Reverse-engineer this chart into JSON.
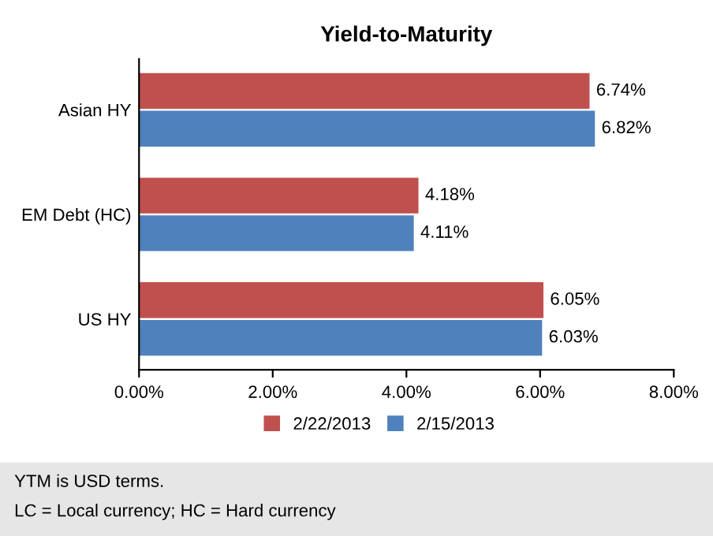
{
  "chart_data": {
    "type": "bar",
    "orientation": "horizontal",
    "title": "Yield-to-Maturity",
    "categories": [
      "Asian HY",
      "EM Debt (HC)",
      "US HY"
    ],
    "series": [
      {
        "name": "2/22/2013",
        "color": "#c0504d",
        "values": [
          6.74,
          4.18,
          6.05
        ],
        "value_labels": [
          "6.74%",
          "4.18%",
          "6.05%"
        ]
      },
      {
        "name": "2/15/2013",
        "color": "#4f81bd",
        "values": [
          6.82,
          4.11,
          6.03
        ],
        "value_labels": [
          "6.82%",
          "4.11%",
          "6.03%"
        ]
      }
    ],
    "xlim": [
      0,
      8
    ],
    "xticks": [
      {
        "value": 0,
        "label": "0.00%"
      },
      {
        "value": 2,
        "label": "2.00%"
      },
      {
        "value": 4,
        "label": "4.00%"
      },
      {
        "value": 6,
        "label": "6.00%"
      },
      {
        "value": 8,
        "label": "8.00%"
      }
    ],
    "grid": false,
    "legend": "bottom",
    "annotations": [
      "YTM is USD terms.",
      "LC = Local currency; HC = Hard currency"
    ]
  }
}
